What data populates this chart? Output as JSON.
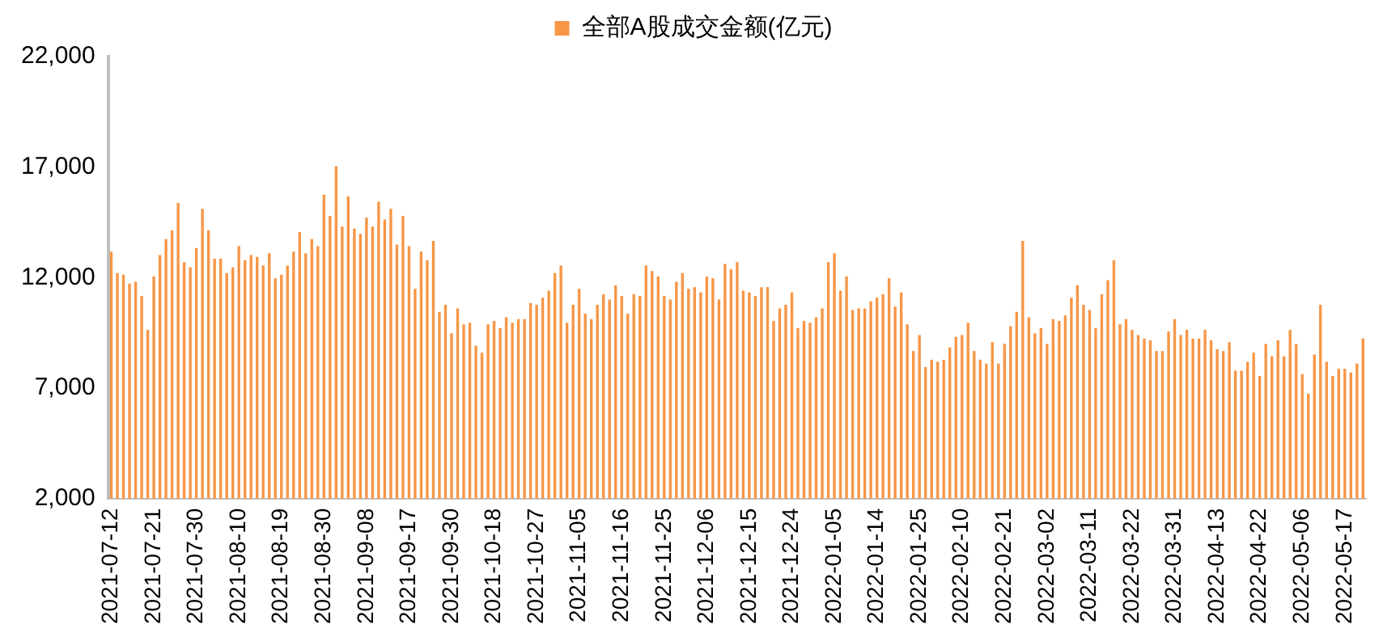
{
  "chart_data": {
    "type": "bar",
    "categories": [
      "2021-07-12",
      null,
      null,
      null,
      null,
      null,
      null,
      "2021-07-21",
      null,
      null,
      null,
      null,
      null,
      null,
      "2021-07-30",
      null,
      null,
      null,
      null,
      null,
      null,
      "2021-08-10",
      null,
      null,
      null,
      null,
      null,
      null,
      "2021-08-19",
      null,
      null,
      null,
      null,
      null,
      null,
      "2021-08-30",
      null,
      null,
      null,
      null,
      null,
      null,
      "2021-09-08",
      null,
      null,
      null,
      null,
      null,
      null,
      "2021-09-17",
      null,
      null,
      null,
      null,
      null,
      null,
      "2021-09-30",
      null,
      null,
      null,
      null,
      null,
      null,
      "2021-10-18",
      null,
      null,
      null,
      null,
      null,
      null,
      "2021-10-27",
      null,
      null,
      null,
      null,
      null,
      null,
      "2021-11-05",
      null,
      null,
      null,
      null,
      null,
      null,
      "2021-11-16",
      null,
      null,
      null,
      null,
      null,
      null,
      "2021-11-25",
      null,
      null,
      null,
      null,
      null,
      null,
      "2021-12-06",
      null,
      null,
      null,
      null,
      null,
      null,
      "2021-12-15",
      null,
      null,
      null,
      null,
      null,
      null,
      "2021-12-24",
      null,
      null,
      null,
      null,
      null,
      null,
      "2022-01-05",
      null,
      null,
      null,
      null,
      null,
      null,
      "2022-01-14",
      null,
      null,
      null,
      null,
      null,
      null,
      "2022-01-25",
      null,
      null,
      null,
      null,
      null,
      null,
      "2022-02-10",
      null,
      null,
      null,
      null,
      null,
      null,
      "2022-02-21",
      null,
      null,
      null,
      null,
      null,
      null,
      "2022-03-02",
      null,
      null,
      null,
      null,
      null,
      null,
      "2022-03-11",
      null,
      null,
      null,
      null,
      null,
      null,
      "2022-03-22",
      null,
      null,
      null,
      null,
      null,
      null,
      "2022-03-31",
      null,
      null,
      null,
      null,
      null,
      null,
      "2022-04-13",
      null,
      null,
      null,
      null,
      null,
      null,
      "2022-04-22",
      null,
      null,
      null,
      null,
      null,
      null,
      "2022-05-06",
      null,
      null,
      null,
      null,
      null,
      null,
      "2022-05-17",
      null,
      null,
      null
    ],
    "series": [
      {
        "name": "全部A股成交金额(亿元)",
        "color": "#f79646",
        "values": [
          13180,
          12210,
          12130,
          11730,
          11810,
          11170,
          9640,
          12050,
          13020,
          13740,
          14140,
          15380,
          12700,
          12460,
          13340,
          15110,
          14140,
          12860,
          12860,
          12210,
          12460,
          13420,
          12780,
          13020,
          12940,
          12540,
          13100,
          11970,
          12130,
          12540,
          13180,
          14060,
          13100,
          13740,
          13420,
          15750,
          14790,
          17040,
          14310,
          15670,
          14220,
          13980,
          14710,
          14310,
          15430,
          14630,
          15110,
          13500,
          14790,
          13420,
          11490,
          13180,
          12780,
          13660,
          10450,
          10770,
          9480,
          10610,
          9880,
          9960,
          8920,
          8600,
          9880,
          10040,
          9720,
          10200,
          9960,
          10120,
          10120,
          10850,
          10770,
          11090,
          11410,
          12210,
          12540,
          9960,
          10770,
          11490,
          10370,
          10120,
          10770,
          11250,
          11010,
          11650,
          11170,
          10370,
          11250,
          11170,
          12540,
          12300,
          12050,
          11170,
          11010,
          11810,
          12210,
          11490,
          11570,
          11330,
          12050,
          11970,
          11010,
          12620,
          12380,
          12700,
          11410,
          11330,
          11170,
          11570,
          11570,
          10040,
          10610,
          10770,
          11330,
          9720,
          10040,
          9960,
          10200,
          10610,
          12700,
          13100,
          11410,
          12050,
          10530,
          10610,
          10610,
          10930,
          11090,
          11250,
          11970,
          10690,
          11330,
          9880,
          8680,
          9400,
          7950,
          8280,
          8190,
          8280,
          8840,
          9320,
          9400,
          9960,
          8680,
          8280,
          8110,
          9080,
          8110,
          9000,
          9800,
          10450,
          13660,
          10200,
          9480,
          9720,
          9000,
          10120,
          10040,
          10290,
          11090,
          11650,
          10770,
          10530,
          9720,
          11250,
          11890,
          12780,
          9880,
          10120,
          9640,
          9400,
          9240,
          9160,
          8680,
          8680,
          9560,
          10120,
          9400,
          9640,
          9240,
          9240,
          9640,
          9160,
          8760,
          8680,
          9080,
          7790,
          7790,
          8190,
          8600,
          7550,
          9000,
          8440,
          9160,
          8440,
          9640,
          9000,
          7630,
          6750,
          8520,
          10770,
          8190,
          7550,
          7870,
          7870,
          7710,
          8110,
          9240
        ]
      }
    ],
    "ylim": [
      2000,
      22000
    ],
    "yticks": [
      {
        "value": 2000,
        "label": "2,000"
      },
      {
        "value": 7000,
        "label": "7,000"
      },
      {
        "value": 12000,
        "label": "12,000"
      },
      {
        "value": 17000,
        "label": "17,000"
      },
      {
        "value": 22000,
        "label": "22,000"
      }
    ],
    "grid": false,
    "legend": "top"
  }
}
